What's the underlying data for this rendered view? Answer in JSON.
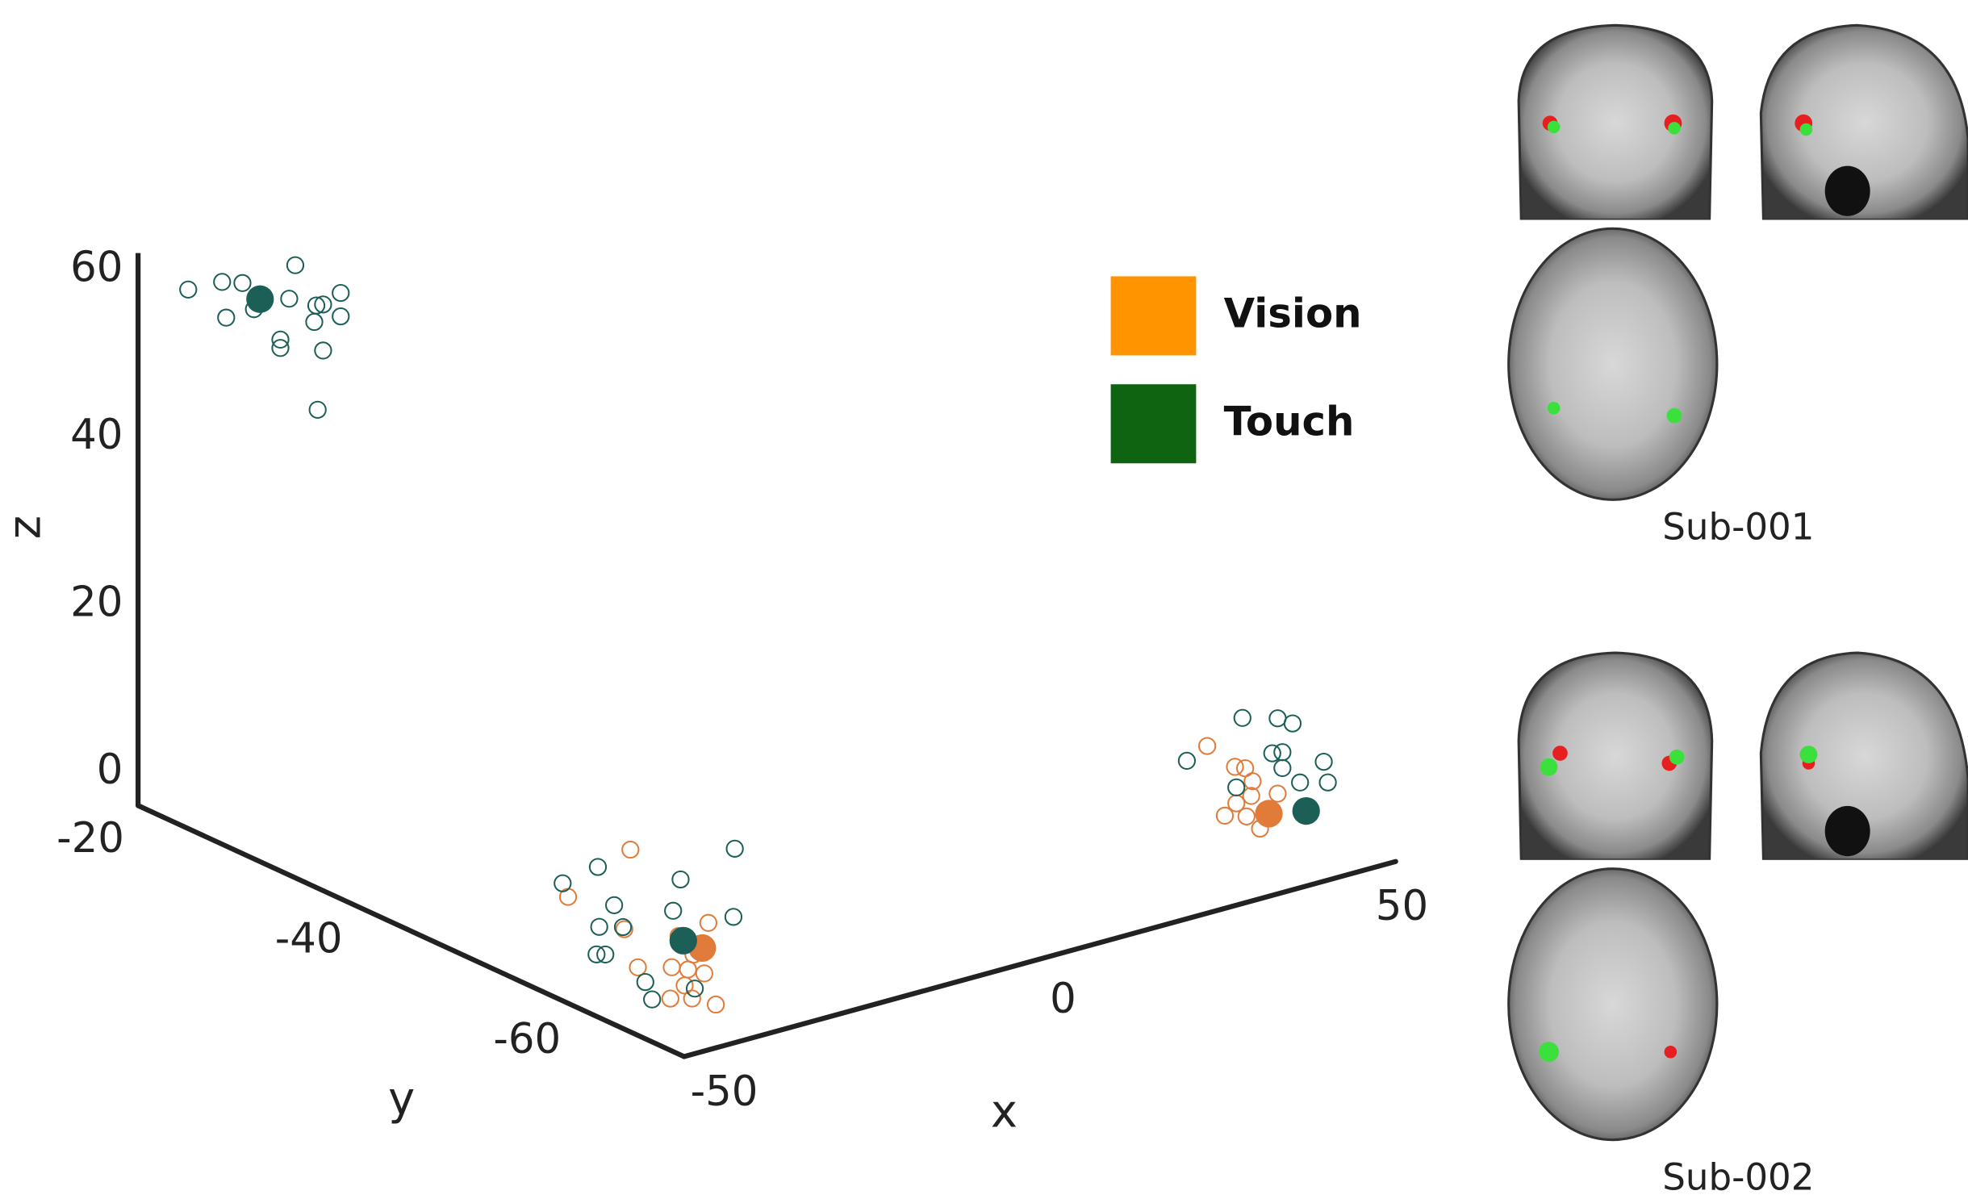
{
  "chart_data": {
    "type": "scatter3d",
    "x_label": "x",
    "y_label": "y",
    "z_label": "z",
    "xlim": [
      -50,
      55
    ],
    "ylim": [
      -70,
      -20
    ],
    "zlim": [
      -4,
      62
    ],
    "xticks": [
      -50,
      0,
      50
    ],
    "yticks": [
      -20,
      -40,
      -60
    ],
    "zticks": [
      0,
      20,
      40,
      60
    ],
    "grid": false,
    "legend": "upper right",
    "series": [
      {
        "name": "Vision",
        "color": "#ff9400",
        "marker_color": "#e07b3a",
        "x": [
          -41.8,
          -51,
          -42.7,
          -30.3,
          -34.7,
          -32.5,
          -35.7,
          -33.3,
          -30.9,
          -35.9,
          -32.7,
          -29.2,
          -33.8,
          -40.7,
          43.3,
          47.4,
          48.9,
          50,
          49.8,
          45.9,
          49.1,
          51.1,
          53.7,
          47.6
        ],
        "y": [
          -60,
          -60,
          -60,
          -60,
          -60,
          -60,
          -60,
          -60,
          -60,
          -60,
          -60,
          -60,
          -60,
          -60,
          -60,
          -60,
          -60,
          -60,
          -60,
          -60,
          -60,
          -60,
          -60,
          -60
        ],
        "z": [
          12.9,
          9.3,
          3.6,
          1.6,
          1,
          -1.7,
          -2.5,
          -3.3,
          -4.3,
          -6.2,
          -6.9,
          -8.4,
          -5.1,
          -1.4,
          6.4,
          3,
          2.5,
          0.7,
          -1,
          -2.5,
          -3.3,
          -5.2,
          -1.6,
          -1.4
        ],
        "mean_x": [
          -31.2,
          52.4
        ],
        "mean_y": [
          -60,
          -60
        ],
        "mean_z": [
          -1.2,
          -3.7
        ]
      },
      {
        "name": "Touch",
        "color": "#0e6410",
        "marker_color": "#1c5f57",
        "x": [
          -42.6,
          -37.6,
          -34.6,
          -26.8,
          -37,
          -32.9,
          -27.7,
          -23.7,
          -22.7,
          -20.1,
          -24,
          -20.1,
          -29,
          -29,
          -22.7,
          -23.5,
          -51.8,
          -46.6,
          -44.2,
          -34.4,
          -26.4,
          -26.6,
          -46.4,
          -42.9,
          -46.8,
          -45.5,
          -35.5,
          -39.6,
          -38.6,
          -32.3,
          48.5,
          53.7,
          55.9,
          40.3,
          52.9,
          54.4,
          60.5,
          54.4,
          57,
          61.1,
          47.6
        ],
        "y": [
          -20,
          -20,
          -20,
          -20,
          -20,
          -20,
          -20,
          -20,
          -20,
          -20,
          -20,
          -20,
          -20,
          -20,
          -20,
          -20,
          -60,
          -60,
          -60,
          -60,
          -60,
          -60,
          -60,
          -60,
          -60,
          -60,
          -60,
          -60,
          -60,
          -60,
          -60,
          -60,
          -60,
          -60,
          -60,
          -60,
          -60,
          -60,
          -60,
          -60,
          -60
        ],
        "z": [
          56,
          55.8,
          55,
          55.4,
          51.4,
          51.5,
          51.6,
          49.9,
          49.8,
          50.6,
          48,
          47.8,
          47,
          46,
          44.3,
          37.4,
          11.1,
          11.9,
          6.8,
          7.7,
          9.6,
          1.5,
          4.7,
          3.9,
          1.5,
          1.2,
          4.2,
          -3.4,
          -5.7,
          -5.8,
          8.6,
          7.4,
          6.3,
          5.3,
          3.4,
          3.2,
          0.7,
          1.3,
          -1,
          -1.9,
          0.5
        ],
        "mean_x": [
          -32,
          -34,
          57.9
        ],
        "mean_y": [
          -20,
          -60,
          -60
        ],
        "mean_z": [
          52.5,
          0.3,
          -4.6
        ]
      }
    ]
  },
  "panels": [
    {
      "label": "Sub-001"
    },
    {
      "label": "Sub-002"
    }
  ]
}
